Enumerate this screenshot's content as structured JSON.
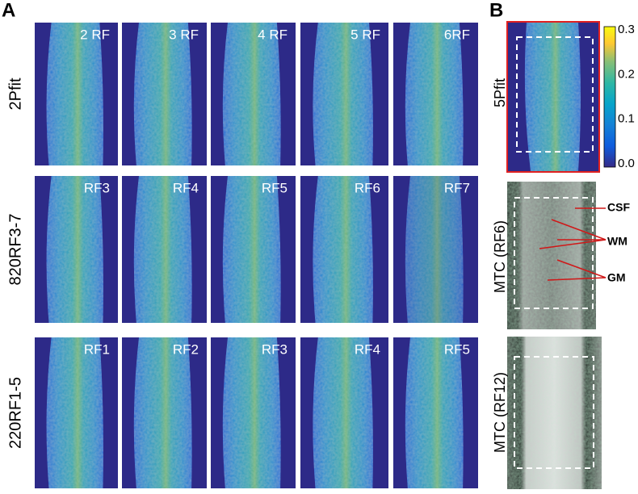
{
  "panels": {
    "a": {
      "label": "A",
      "rows": [
        {
          "label": "2Pfit",
          "tiles": [
            "2 RF",
            "3 RF",
            "4 RF",
            "5 RF",
            "6RF"
          ]
        },
        {
          "label": "820RF3-7",
          "tiles": [
            "RF3",
            "RF4",
            "RF5",
            "RF6",
            "RF7"
          ]
        },
        {
          "label": "220RF1-5",
          "tiles": [
            "RF1",
            "RF2",
            "RF3",
            "RF4",
            "RF5"
          ]
        }
      ]
    },
    "b": {
      "label": "B",
      "map_label": "5Pfit",
      "colorbar_ticks": [
        "0.3",
        "0.2",
        "0.1",
        "0.0"
      ],
      "mtc_labels": [
        "MTC (RF6)",
        "MTC (RF12)"
      ],
      "annotations": [
        "CSF",
        "WM",
        "GM"
      ]
    }
  }
}
